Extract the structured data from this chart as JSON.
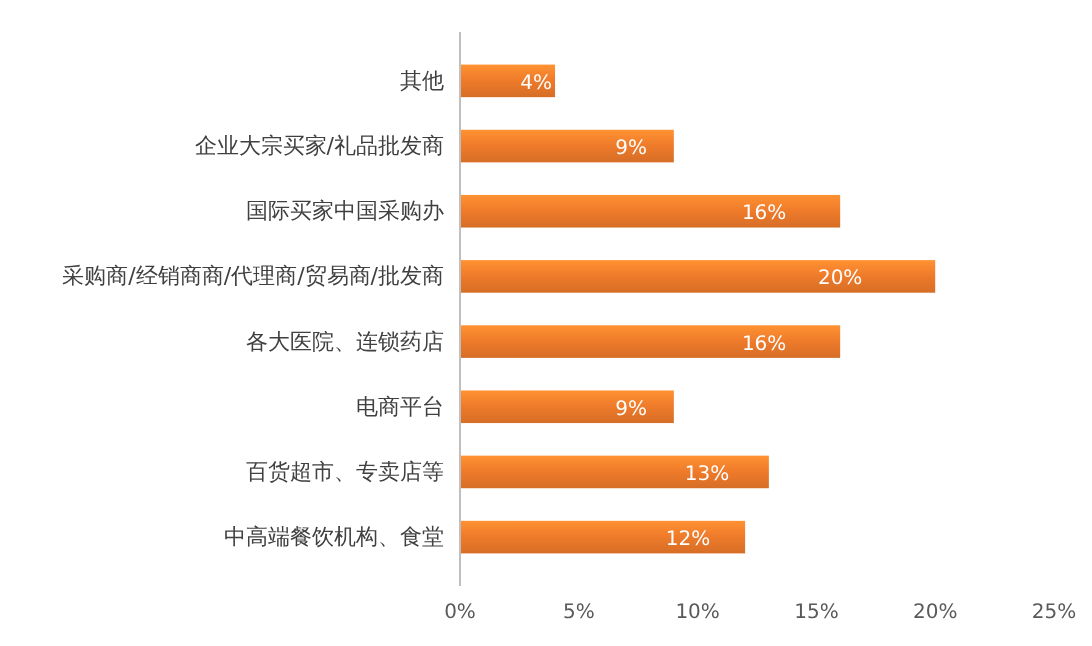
{
  "chart_data": {
    "type": "bar",
    "orientation": "horizontal",
    "categories": [
      "其他",
      "企业大宗买家/礼品批发商",
      "国际买家中国采购办",
      "采购商/经销商商/代理商/贸易商/批发商",
      "各大医院、连锁药店",
      "电商平台",
      "百货超市、专卖店等",
      "中高端餐饮机构、食堂"
    ],
    "values": [
      4,
      9,
      16,
      20,
      16,
      9,
      13,
      12
    ],
    "value_labels": [
      "4%",
      "9%",
      "16%",
      "20%",
      "16%",
      "9%",
      "13%",
      "12%"
    ],
    "color": "#ee7a2a",
    "xlim": [
      0,
      25
    ],
    "xticks": [
      {
        "value": 0,
        "label": "0%"
      },
      {
        "value": 5,
        "label": "5%"
      },
      {
        "value": 10,
        "label": "10%"
      },
      {
        "value": 15,
        "label": "15%"
      },
      {
        "value": 20,
        "label": "20%"
      },
      {
        "value": 25,
        "label": "25%"
      }
    ],
    "grid": false
  }
}
